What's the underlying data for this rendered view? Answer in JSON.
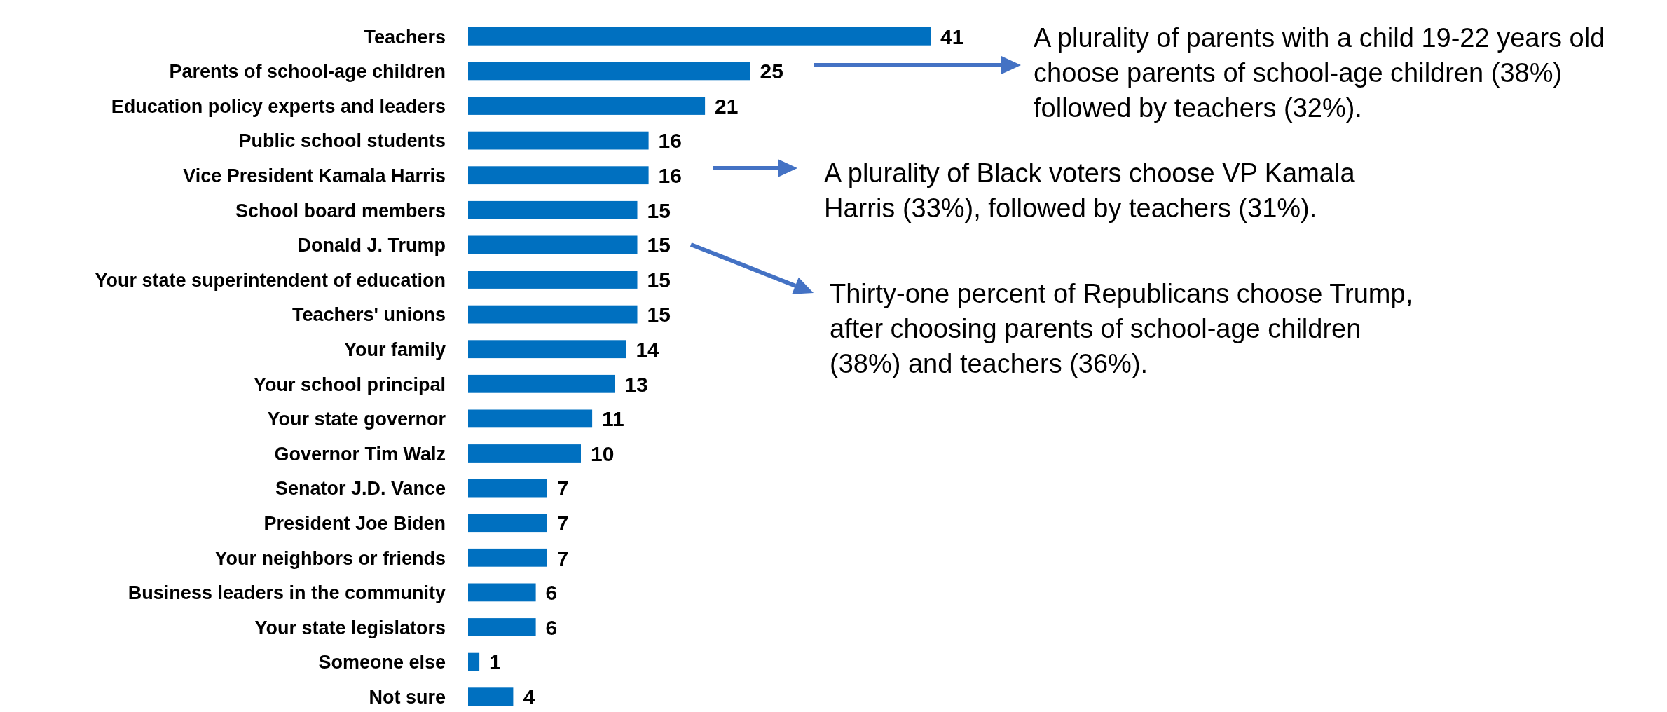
{
  "chart_data": {
    "type": "bar",
    "orientation": "horizontal",
    "categories": [
      "Teachers",
      "Parents of school-age children",
      "Education policy experts and leaders",
      "Public school students",
      "Vice President Kamala Harris",
      "School board members",
      "Donald J. Trump",
      "Your state superintendent of education",
      "Teachers' unions",
      "Your family",
      "Your school principal",
      "Your state governor",
      "Governor Tim Walz",
      "Senator J.D. Vance",
      "President Joe Biden",
      "Your neighbors or friends",
      "Business leaders in the community",
      "Your state legislators",
      "Someone else",
      "Not sure"
    ],
    "values": [
      41,
      25,
      21,
      16,
      16,
      15,
      15,
      15,
      15,
      14,
      13,
      11,
      10,
      7,
      7,
      7,
      6,
      6,
      1,
      4
    ],
    "color": "#0070c0",
    "data_labels": true,
    "tick_labels": "y",
    "annotations": [
      "A plurality of parents with a child 19-22 years old choose parents of school-age children (38%) followed by teachers (32%).",
      "A plurality of Black voters choose VP Kamala Harris (33%), followed by teachers (31%).",
      "Thirty-one percent of Republicans choose Trump, after choosing parents of school-age children (38%) and teachers (36%)."
    ]
  }
}
